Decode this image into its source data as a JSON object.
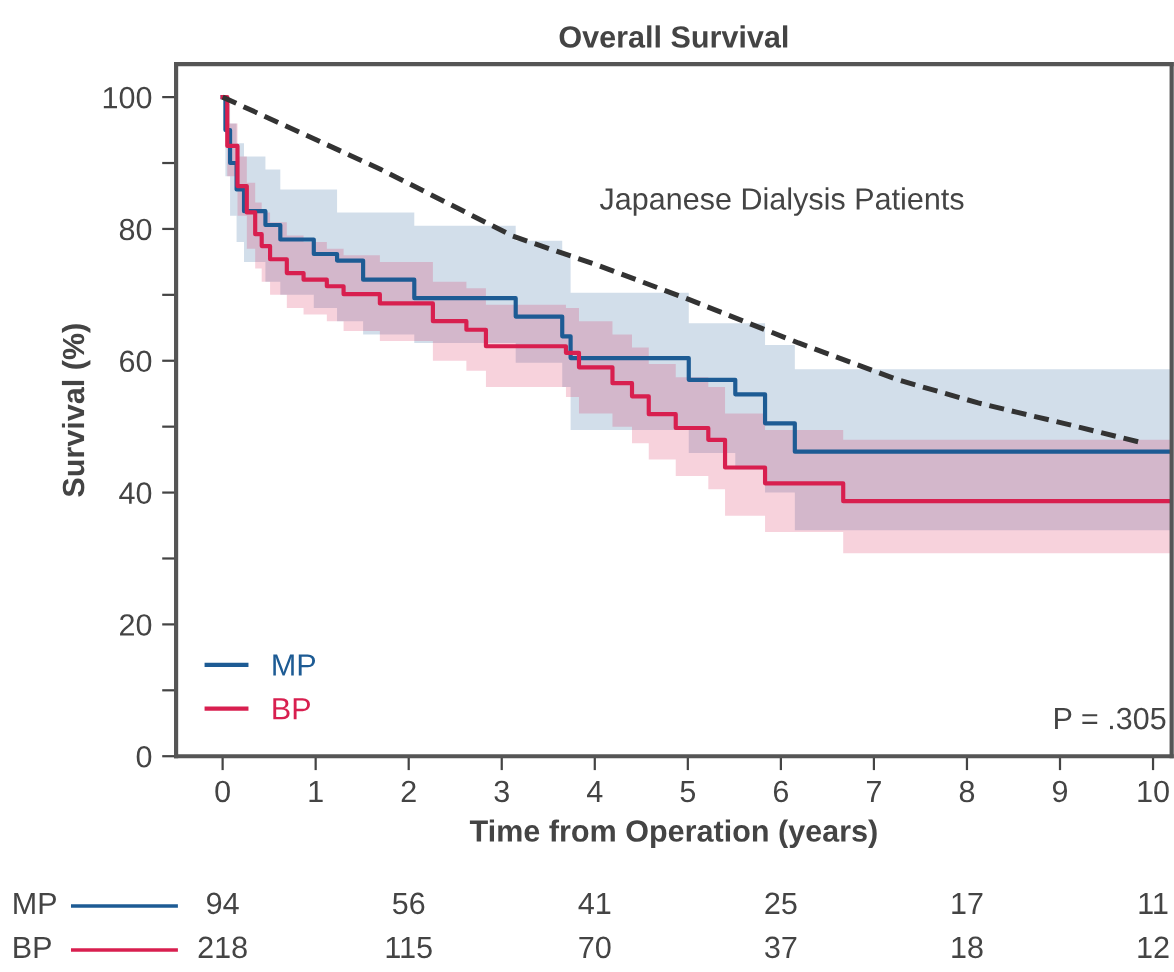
{
  "chart_data": {
    "type": "step",
    "title": "Overall Survival",
    "xlabel": "Time from Operation (years)",
    "ylabel": "Survival (%)",
    "xlim": [
      -0.5,
      10.2
    ],
    "xticks": [
      0,
      1,
      2,
      3,
      4,
      5,
      6,
      7,
      8,
      9,
      10
    ],
    "ylim": [
      0,
      105
    ],
    "yticks": [
      0,
      {
        "value": 10,
        "label": null
      },
      20,
      {
        "value": 30,
        "label": null
      },
      40,
      {
        "value": 50,
        "label": null
      },
      60,
      {
        "value": 70,
        "label": null
      },
      80,
      {
        "value": 90,
        "label": null
      },
      100
    ],
    "legend": "bottom left",
    "grid": false,
    "marker": "none",
    "series": [
      {
        "name": "MP",
        "color": "#1d5b94",
        "x": [
          0,
          0.03,
          0.08,
          0.15,
          0.23,
          0.46,
          0.62,
          0.98,
          1.23,
          1.51,
          2.06,
          3.15,
          3.65,
          3.74,
          5.01,
          5.51,
          5.83,
          6.15,
          10.2
        ],
        "values": [
          100,
          95,
          90,
          86,
          82.7,
          80.6,
          78.4,
          76.2,
          75.2,
          72.3,
          69.5,
          66.7,
          63.7,
          60.4,
          57.1,
          54.9,
          50.5,
          46.2,
          46.2
        ],
        "lower": [
          100,
          88,
          82,
          78,
          75,
          72,
          70,
          68,
          66,
          64,
          62.7,
          59.7,
          56,
          49.5,
          46,
          43.5,
          40,
          34.3,
          34.3
        ],
        "upper": [
          100,
          99,
          96,
          93,
          91,
          89,
          86,
          86,
          82.5,
          82.5,
          80.5,
          78.2,
          75.9,
          70.3,
          65.7,
          65.7,
          62.4,
          58.7,
          58.7
        ]
      },
      {
        "name": "BP",
        "color": "#d81f4f",
        "x": [
          0,
          0.05,
          0.16,
          0.26,
          0.35,
          0.42,
          0.51,
          0.69,
          0.87,
          1.12,
          1.3,
          1.69,
          2.26,
          2.62,
          2.83,
          3.69,
          3.83,
          4.19,
          4.4,
          4.58,
          4.87,
          5.22,
          5.4,
          5.83,
          6.67,
          10.2
        ],
        "values": [
          100,
          92.6,
          86.5,
          82.5,
          79.2,
          77.4,
          75.4,
          73.3,
          72.3,
          71.3,
          70.1,
          68.7,
          66,
          64.7,
          62.2,
          61.2,
          59,
          56.6,
          54.6,
          51.9,
          49.8,
          48,
          43.8,
          41.4,
          38.7,
          38.7
        ],
        "lower": [
          100,
          88,
          82,
          77,
          74,
          72,
          70,
          68,
          67,
          66,
          64.5,
          63,
          60,
          58.5,
          56,
          54.5,
          52,
          50,
          47.5,
          45,
          42.5,
          40.5,
          36.5,
          34,
          30.8,
          30.8
        ],
        "upper": [
          100,
          96,
          91,
          87,
          84,
          82.5,
          81,
          79,
          78,
          77,
          76,
          75,
          72,
          71,
          68.5,
          68,
          66,
          64,
          62,
          59.5,
          57.5,
          56,
          52,
          49.5,
          48,
          48
        ]
      },
      {
        "type": "line",
        "name": "Japanese Dialysis Patients",
        "color": "#333333",
        "line_style": "dashed",
        "x": [
          0,
          1.69,
          3.12,
          4.05,
          5.01,
          6.19,
          7.26,
          8.12,
          9.04,
          9.9
        ],
        "values": [
          100,
          89.1,
          78.9,
          74.4,
          69.3,
          62.7,
          57.1,
          53.6,
          50.5,
          47.5
        ]
      }
    ],
    "annotations": [
      "P = .305",
      "MP",
      "94",
      "56",
      "41",
      "25",
      "17",
      "11",
      "BP",
      "218",
      "115",
      "70",
      "37",
      "18",
      "12"
    ]
  }
}
